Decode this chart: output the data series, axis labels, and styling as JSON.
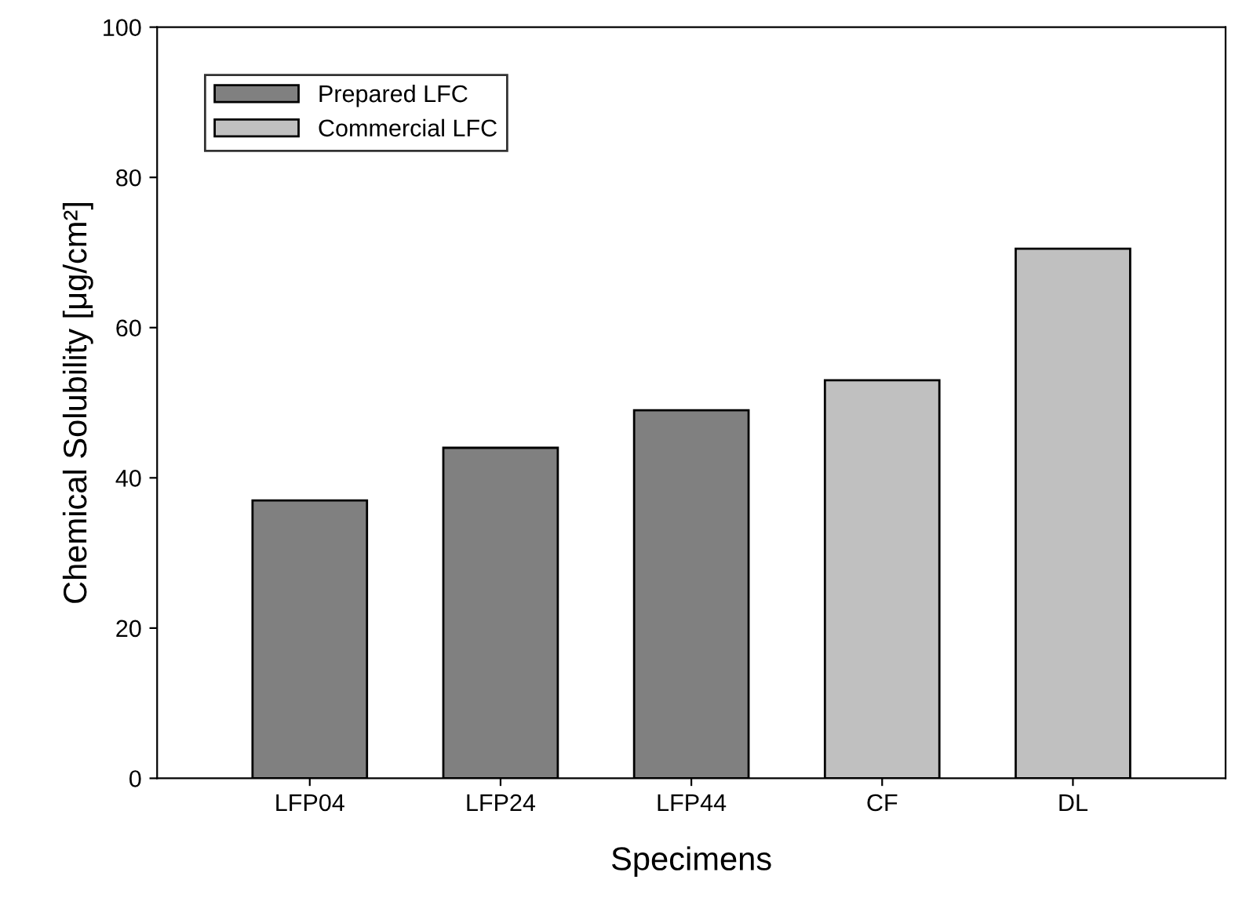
{
  "chart_data": {
    "type": "bar",
    "xlabel": "Specimens",
    "ylabel": "Chemical Solubility [μg/cm²]",
    "categories": [
      "LFP04",
      "LFP24",
      "LFP44",
      "CF",
      "DL"
    ],
    "series": [
      {
        "name": "Prepared LFC",
        "color": "#808080",
        "values": [
          37,
          44,
          49,
          null,
          null
        ]
      },
      {
        "name": "Commercial LFC",
        "color": "#c0c0c0",
        "values": [
          null,
          null,
          null,
          53,
          70.5
        ]
      }
    ],
    "ylim": [
      0,
      100
    ],
    "yticks": [
      0,
      20,
      40,
      60,
      80,
      100
    ],
    "grid": false,
    "legend": "top left"
  }
}
